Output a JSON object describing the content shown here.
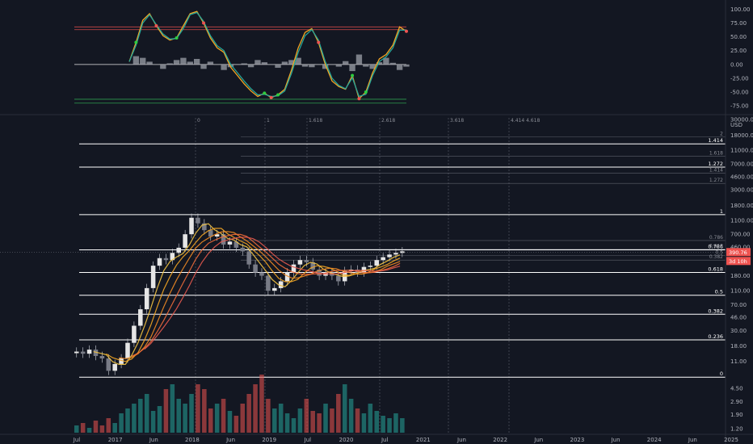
{
  "chart_data": [
    {
      "type": "line",
      "name_hint": "oscillator",
      "y_ticks": [
        "100.00",
        "75.00",
        "50.00",
        "25.00",
        "0.00",
        "-25.00",
        "-50.00",
        "-75.00"
      ],
      "ylim": [
        -85,
        105
      ],
      "levels": [
        {
          "value": 68,
          "color": "#d04848"
        },
        {
          "value": 63,
          "color": "#d04848"
        },
        {
          "value": 0,
          "color": "#e6e6e6"
        },
        {
          "value": -63,
          "color": "#2e9d4e"
        },
        {
          "value": -70,
          "color": "#2e9d4e"
        }
      ],
      "x": [
        "2016-12",
        "2017-01",
        "2017-03",
        "2017-04",
        "2017-05",
        "2017-06",
        "2017-07",
        "2017-08",
        "2017-09",
        "2017-11",
        "2017-12",
        "2018-01",
        "2018-02",
        "2018-03",
        "2018-04",
        "2018-06",
        "2018-07",
        "2018-08",
        "2018-09",
        "2018-10",
        "2018-12",
        "2019-01",
        "2019-02",
        "2019-03",
        "2019-04",
        "2019-05",
        "2019-06",
        "2019-07",
        "2019-08",
        "2019-09",
        "2019-11",
        "2019-12",
        "2020-01",
        "2020-02",
        "2020-03",
        "2020-04",
        "2020-05",
        "2020-06",
        "2020-07",
        "2020-08",
        "2020-09",
        "2020-10"
      ],
      "series": [
        {
          "color": "#f5a623",
          "values": [
            5,
            40,
            80,
            92,
            70,
            52,
            44,
            48,
            70,
            92,
            96,
            75,
            48,
            30,
            22,
            -5,
            -20,
            -35,
            -48,
            -58,
            -52,
            -60,
            -55,
            -45,
            -10,
            30,
            58,
            65,
            40,
            0,
            -30,
            -40,
            -45,
            -20,
            -62,
            -50,
            -15,
            10,
            18,
            35,
            68,
            60
          ]
        },
        {
          "color": "#26a69a",
          "values": [
            5,
            35,
            75,
            90,
            72,
            55,
            46,
            47,
            65,
            90,
            94,
            78,
            52,
            34,
            25,
            0,
            -15,
            -30,
            -44,
            -55,
            -54,
            -58,
            -57,
            -48,
            -16,
            22,
            52,
            63,
            44,
            5,
            -25,
            -38,
            -44,
            -24,
            -58,
            -54,
            -20,
            5,
            14,
            30,
            62,
            62
          ]
        }
      ],
      "histogram": [
        0,
        15,
        12,
        5,
        0,
        -8,
        2,
        8,
        12,
        5,
        10,
        -8,
        5,
        0,
        -10,
        -5,
        0,
        2,
        -5,
        8,
        4,
        0,
        -6,
        5,
        8,
        12,
        -4,
        -5,
        0,
        -8,
        0,
        -4,
        6,
        -12,
        18,
        -4,
        -8,
        4,
        12,
        3,
        -10,
        -4
      ]
    },
    {
      "type": "bar",
      "name_hint": "price",
      "y_scale": "log",
      "currency": "USD",
      "y_ticks": [
        "30000.00",
        "18000.00",
        "11000.00",
        "7000.00",
        "4600.00",
        "3000.00",
        "1800.00",
        "1100.00",
        "700.00",
        "460.00",
        "280.00",
        "180.00",
        "110.00",
        "70.00",
        "46.00",
        "30.00",
        "18.00",
        "11.00",
        "4.50",
        "2.90",
        "1.90",
        "1.20"
      ],
      "x_ticks": [
        "Jul",
        "2017",
        "Jun",
        "2018",
        "Jun",
        "2019",
        "Jul",
        "2020",
        "Jul",
        "2021",
        "Jun",
        "2022",
        "Jun",
        "2023",
        "Jun",
        "2024",
        "Jun",
        "2025"
      ],
      "price_tag": "390.76",
      "time_tag": "3d 10h",
      "fib_levels": [
        {
          "label": "1.414",
          "value": 13500
        },
        {
          "label": "1.272",
          "value": 6300
        },
        {
          "label": "1",
          "value": 1330
        },
        {
          "label": "0.786",
          "value": 420
        },
        {
          "label": "0.618",
          "value": 200
        },
        {
          "label": "0.5",
          "value": 95
        },
        {
          "label": "0.382",
          "value": 51
        },
        {
          "label": "0.236",
          "value": 22
        },
        {
          "label": "0",
          "value": 6.5
        }
      ],
      "fib_dim": [
        "2",
        "1.618",
        "1.414",
        "1.272",
        "0.786",
        "0.618",
        "0.5",
        "0.382"
      ],
      "time_fib_labels": [
        "0",
        "1",
        "1.618",
        "2.618",
        "3.618",
        "4.414 4.618"
      ],
      "candles_close": [
        15,
        14,
        16,
        13,
        12,
        8,
        10,
        12,
        20,
        35,
        60,
        120,
        250,
        320,
        300,
        380,
        450,
        700,
        1200,
        1000,
        800,
        650,
        700,
        500,
        550,
        450,
        400,
        260,
        200,
        180,
        110,
        120,
        150,
        200,
        260,
        300,
        280,
        220,
        180,
        200,
        180,
        150,
        210,
        220,
        200,
        240,
        250,
        300,
        330,
        360,
        380,
        400
      ],
      "volume": [
        3,
        4,
        2,
        5,
        3,
        6,
        4,
        8,
        10,
        12,
        14,
        16,
        9,
        11,
        18,
        20,
        14,
        12,
        16,
        20,
        18,
        10,
        12,
        14,
        9,
        7,
        12,
        16,
        20,
        24,
        14,
        10,
        12,
        8,
        6,
        10,
        14,
        9,
        8,
        12,
        10,
        16,
        20,
        14,
        10,
        8,
        12,
        9,
        7,
        6,
        8,
        6
      ]
    }
  ]
}
